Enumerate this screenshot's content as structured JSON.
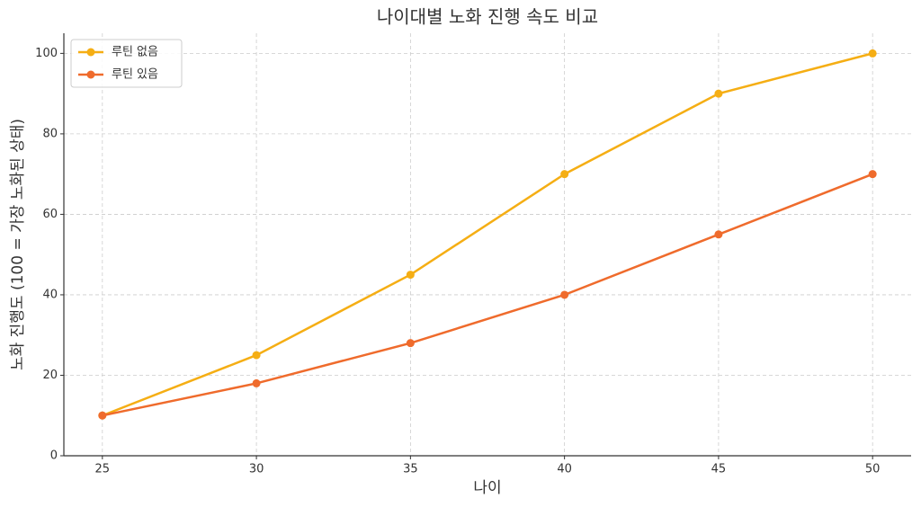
{
  "chart_data": {
    "type": "line",
    "title": "나이대별 노화 진행 속도 비교",
    "x_label": "나이",
    "y_label": "노화 진행도 (100 = 가장 노화된 상태)",
    "x": [
      25,
      30,
      35,
      40,
      45,
      50
    ],
    "series": [
      {
        "name": "루틴 없음",
        "color": "#f5ae14",
        "values": [
          10,
          25,
          45,
          70,
          90,
          100
        ]
      },
      {
        "name": "루틴 있음",
        "color": "#ef6b2c",
        "values": [
          10,
          18,
          28,
          40,
          55,
          70
        ]
      }
    ],
    "xlim": [
      23.75,
      51.25
    ],
    "ylim": [
      0,
      105
    ],
    "xticks": [
      25,
      30,
      35,
      40,
      45,
      50
    ],
    "yticks": [
      0,
      20,
      40,
      60,
      80,
      100
    ],
    "grid": true,
    "legend": "upper-left"
  }
}
